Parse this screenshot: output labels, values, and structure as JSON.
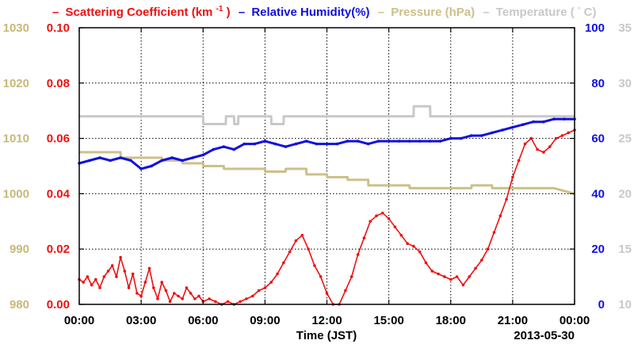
{
  "chart_data": {
    "type": "line",
    "legend": [
      {
        "dash": "–",
        "label": "Scattering Coefficient (km",
        "sup": "-1",
        "close": ")",
        "color": "#ee1111"
      },
      {
        "dash": "–",
        "label": "Relative Humidity(%)",
        "color": "#1111dd"
      },
      {
        "dash": "–",
        "label": "Pressure (hPa)",
        "color": "#ccc08a"
      },
      {
        "dash": "–",
        "label": "Temperature (",
        "degree": "°",
        "close": "C)",
        "color": "#c8c8c8"
      }
    ],
    "xlabel": "Time (JST)",
    "date_label": "2013-05-30",
    "x_tick_labels": [
      "00:00",
      "03:00",
      "06:00",
      "09:00",
      "12:00",
      "15:00",
      "18:00",
      "21:00",
      "00:00"
    ],
    "xlim": [
      0,
      24
    ],
    "grid": true,
    "axes": {
      "pressure": {
        "side": "left-outer",
        "color": "#c8b878",
        "ylim": [
          980,
          1030
        ],
        "ticks": [
          "980",
          "990",
          "1000",
          "1010",
          "1020",
          "1030"
        ]
      },
      "scattering": {
        "side": "left-inner",
        "color": "#ee1111",
        "ylim": [
          0,
          0.1
        ],
        "ticks": [
          "0.00",
          "0.02",
          "0.04",
          "0.06",
          "0.08",
          "0.10"
        ]
      },
      "humidity": {
        "side": "right-inner",
        "color": "#1111dd",
        "ylim": [
          0,
          100
        ],
        "ticks": [
          "0",
          "20",
          "40",
          "60",
          "80",
          "100"
        ]
      },
      "temperature": {
        "side": "right-outer",
        "color": "#c8c8c8",
        "ylim": [
          10,
          35
        ],
        "ticks": [
          "10",
          "15",
          "20",
          "25",
          "30",
          "35"
        ]
      }
    },
    "series": [
      {
        "name": "Scattering Coefficient",
        "axis": "scattering",
        "color": "#ee1111",
        "x": [
          0,
          0.2,
          0.4,
          0.6,
          0.8,
          1,
          1.2,
          1.4,
          1.6,
          1.8,
          2,
          2.2,
          2.4,
          2.6,
          2.8,
          3,
          3.2,
          3.4,
          3.6,
          3.8,
          4,
          4.2,
          4.4,
          4.6,
          4.8,
          5,
          5.2,
          5.4,
          5.6,
          5.8,
          6,
          6.3,
          6.6,
          6.9,
          7.2,
          7.5,
          7.8,
          8.1,
          8.4,
          8.7,
          9,
          9.3,
          9.6,
          9.9,
          10.2,
          10.5,
          10.8,
          11.1,
          11.4,
          11.7,
          12,
          12.3,
          12.6,
          12.9,
          13.2,
          13.5,
          13.8,
          14.1,
          14.4,
          14.7,
          15,
          15.3,
          15.6,
          15.9,
          16.2,
          16.5,
          16.8,
          17.1,
          17.4,
          17.7,
          18,
          18.3,
          18.6,
          18.9,
          19.2,
          19.5,
          19.8,
          20.1,
          20.4,
          20.7,
          21,
          21.3,
          21.6,
          21.9,
          22.2,
          22.5,
          22.8,
          23.1,
          23.4,
          23.7,
          24
        ],
        "values": [
          0.009,
          0.008,
          0.01,
          0.007,
          0.009,
          0.006,
          0.01,
          0.012,
          0.014,
          0.01,
          0.017,
          0.012,
          0.006,
          0.011,
          0.004,
          0.003,
          0.008,
          0.013,
          0.006,
          0.002,
          0.008,
          0.005,
          0.001,
          0.004,
          0.003,
          0.002,
          0.006,
          0.004,
          0.002,
          0.003,
          0.001,
          0.002,
          0.001,
          0.0,
          0.001,
          0.0,
          0.001,
          0.002,
          0.003,
          0.005,
          0.006,
          0.008,
          0.011,
          0.015,
          0.019,
          0.023,
          0.025,
          0.02,
          0.014,
          0.01,
          0.004,
          0.0,
          0.0,
          0.005,
          0.01,
          0.018,
          0.024,
          0.03,
          0.032,
          0.033,
          0.031,
          0.028,
          0.025,
          0.022,
          0.021,
          0.019,
          0.015,
          0.012,
          0.011,
          0.01,
          0.009,
          0.01,
          0.007,
          0.01,
          0.013,
          0.016,
          0.02,
          0.026,
          0.032,
          0.038,
          0.046,
          0.052,
          0.058,
          0.06,
          0.056,
          0.055,
          0.057,
          0.06,
          0.061,
          0.062,
          0.063
        ]
      },
      {
        "name": "Relative Humidity",
        "axis": "humidity",
        "color": "#1111dd",
        "x": [
          0,
          0.5,
          1,
          1.5,
          2,
          2.5,
          3,
          3.5,
          4,
          4.5,
          5,
          5.5,
          6,
          6.5,
          7,
          7.5,
          8,
          8.5,
          9,
          9.5,
          10,
          10.5,
          11,
          11.5,
          12,
          12.5,
          13,
          13.5,
          14,
          14.5,
          15,
          15.5,
          16,
          16.5,
          17,
          17.5,
          18,
          18.5,
          19,
          19.5,
          20,
          20.5,
          21,
          21.5,
          22,
          22.5,
          23,
          23.5,
          24
        ],
        "values": [
          51,
          52,
          53,
          52,
          53,
          52,
          49,
          50,
          52,
          53,
          52,
          53,
          54,
          56,
          57,
          56,
          58,
          58,
          59,
          58,
          57,
          58,
          59,
          58,
          58,
          58,
          59,
          59,
          58,
          59,
          59,
          59,
          59,
          59,
          59,
          59,
          60,
          60,
          61,
          61,
          62,
          63,
          64,
          65,
          66,
          66,
          67,
          67,
          67
        ]
      },
      {
        "name": "Pressure",
        "axis": "pressure",
        "color": "#ccc08a",
        "x": [
          0,
          1,
          2,
          2.01,
          4,
          4.01,
          5,
          5.01,
          6,
          6.01,
          7,
          7.01,
          9,
          9.01,
          10,
          10.01,
          11,
          11.01,
          12,
          12.01,
          13,
          13.01,
          14,
          14.01,
          15,
          15.01,
          16,
          16.01,
          17,
          17.01,
          18,
          18.01,
          19,
          19.01,
          20,
          20.01,
          21,
          21.01,
          22,
          22.01,
          23,
          24
        ],
        "values": [
          1007.5,
          1007.5,
          1007.5,
          1006.5,
          1006.5,
          1006,
          1006,
          1005.5,
          1005.5,
          1005,
          1005,
          1004.5,
          1004.5,
          1004,
          1004,
          1004.5,
          1004.5,
          1003.5,
          1003.5,
          1003,
          1003,
          1002.5,
          1002.5,
          1001.5,
          1001.5,
          1001.5,
          1001.5,
          1001,
          1001,
          1001,
          1001,
          1001,
          1001,
          1001.5,
          1001.5,
          1001,
          1001,
          1001,
          1001,
          1001,
          1001,
          1000
        ]
      },
      {
        "name": "Temperature",
        "axis": "temperature",
        "color": "#c8c8c8",
        "x": [
          0,
          6,
          6.01,
          7.1,
          7.11,
          7.5,
          7.51,
          7.7,
          7.71,
          9.3,
          9.31,
          9.9,
          9.91,
          10.6,
          10.61,
          14.7,
          14.71,
          16.2,
          16.21,
          17,
          17.01,
          24
        ],
        "values": [
          27,
          27,
          26.3,
          26.3,
          27,
          27,
          26.3,
          26.3,
          27,
          27,
          26.3,
          26.3,
          27,
          27,
          27,
          27,
          27,
          27,
          27.9,
          27.9,
          27,
          27
        ]
      }
    ]
  }
}
